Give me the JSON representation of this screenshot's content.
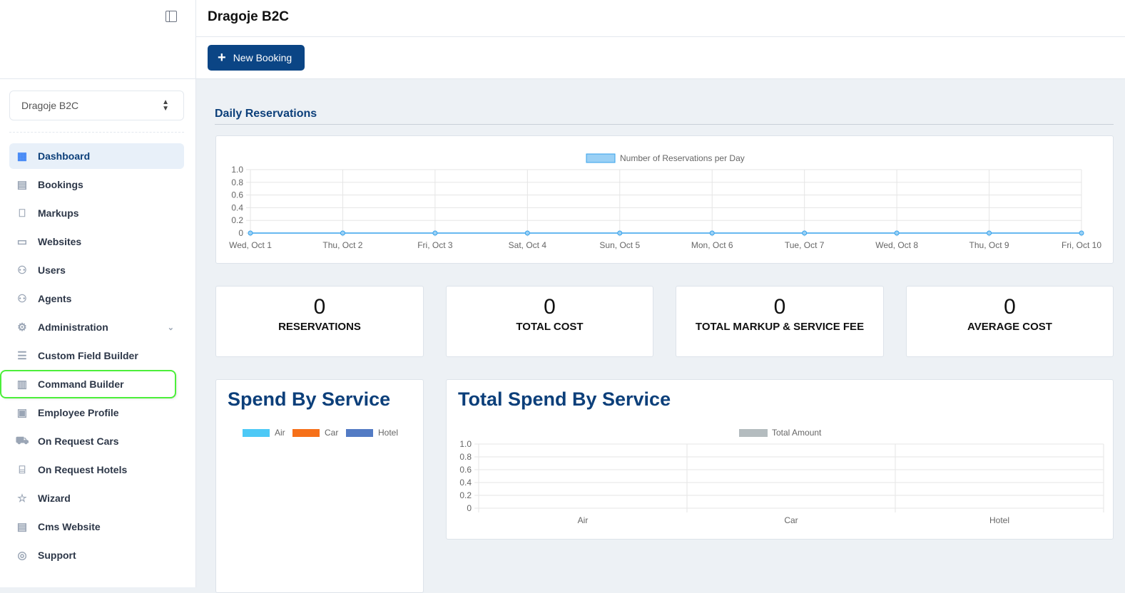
{
  "sidebar": {
    "selector_value": "Dragoje B2C",
    "items": [
      {
        "label": "Dashboard",
        "icon": "grid-icon"
      },
      {
        "label": "Bookings",
        "icon": "calendar-icon"
      },
      {
        "label": "Markups",
        "icon": "bookmark-icon"
      },
      {
        "label": "Websites",
        "icon": "browser-icon"
      },
      {
        "label": "Users",
        "icon": "users-icon"
      },
      {
        "label": "Agents",
        "icon": "users-icon"
      },
      {
        "label": "Administration",
        "icon": "gears-icon"
      },
      {
        "label": "Custom Field Builder",
        "icon": "form-icon"
      },
      {
        "label": "Command Builder",
        "icon": "layout-icon"
      },
      {
        "label": "Employee Profile",
        "icon": "id-card-icon"
      },
      {
        "label": "On Request Cars",
        "icon": "car-icon"
      },
      {
        "label": "On Request Hotels",
        "icon": "bed-icon"
      },
      {
        "label": "Wizard",
        "icon": "window-star-icon"
      },
      {
        "label": "Cms Website",
        "icon": "document-icon"
      },
      {
        "label": "Support",
        "icon": "lifebuoy-icon"
      }
    ]
  },
  "header": {
    "title": "Dragoje B2C",
    "new_booking": "New Booking"
  },
  "section_title": "Daily Reservations",
  "stats": [
    {
      "value": "0",
      "label": "RESERVATIONS"
    },
    {
      "value": "0",
      "label": "TOTAL COST"
    },
    {
      "value": "0",
      "label": "TOTAL MARKUP & SERVICE FEE"
    },
    {
      "value": "0",
      "label": "AVERAGE COST"
    }
  ],
  "spend_title": "Spend By Service",
  "total_spend_title": "Total Spend By Service",
  "chart_data": [
    {
      "type": "line",
      "legend": [
        "Number of Reservations per Day"
      ],
      "legend_placement": "top",
      "categories": [
        "Wed, Oct 1",
        "Thu, Oct 2",
        "Fri, Oct 3",
        "Sat, Oct 4",
        "Sun, Oct 5",
        "Mon, Oct 6",
        "Tue, Oct 7",
        "Wed, Oct 8",
        "Thu, Oct 9",
        "Fri, Oct 10"
      ],
      "series": [
        {
          "name": "Number of Reservations per Day",
          "values": [
            0,
            0,
            0,
            0,
            0,
            0,
            0,
            0,
            0,
            0
          ],
          "color": "#36a2eb"
        }
      ],
      "yticks": [
        "1.0",
        "0.8",
        "0.6",
        "0.4",
        "0.2",
        "0"
      ],
      "ylim": [
        0,
        1
      ],
      "grid": true
    },
    {
      "type": "pie",
      "legend_placement": "top",
      "categories": [
        "Air",
        "Car",
        "Hotel"
      ],
      "values": [
        0,
        0,
        0
      ],
      "colors": [
        "#4dc9f6",
        "#f67019",
        "#537bc4"
      ]
    },
    {
      "type": "bar",
      "legend": [
        "Total Amount"
      ],
      "legend_placement": "top",
      "categories": [
        "Air",
        "Car",
        "Hotel"
      ],
      "series": [
        {
          "name": "Total Amount",
          "values": [
            0,
            0,
            0
          ],
          "color": "#b4bcbf"
        }
      ],
      "yticks": [
        "1.0",
        "0.8",
        "0.6",
        "0.4",
        "0.2",
        "0"
      ],
      "ylim": [
        0,
        1
      ],
      "grid": true
    }
  ]
}
